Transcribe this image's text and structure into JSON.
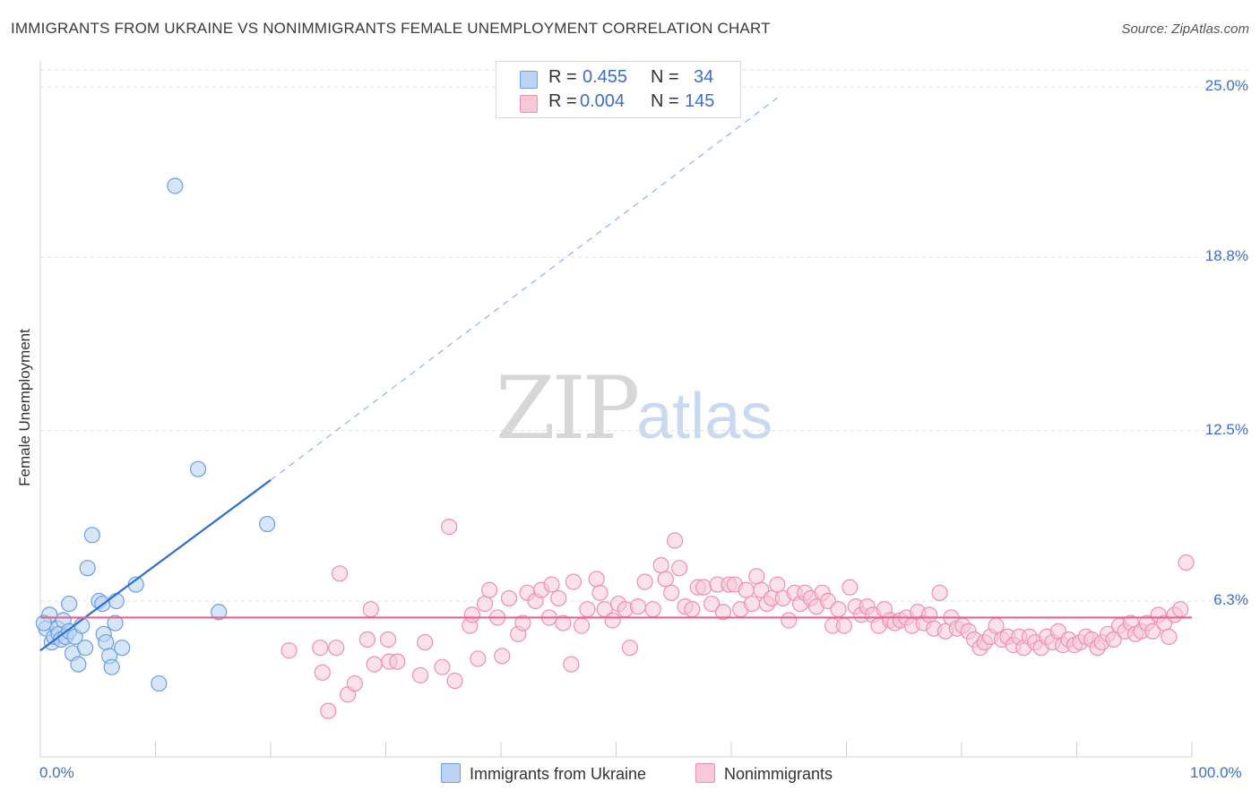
{
  "title": "IMMIGRANTS FROM UKRAINE VS NONIMMIGRANTS FEMALE UNEMPLOYMENT CORRELATION CHART",
  "source": "Source: ZipAtlas.com",
  "watermark": {
    "zip": "ZIP",
    "atlas": "atlas"
  },
  "legend": {
    "series1": {
      "r_label": "R =",
      "r_value": "0.455",
      "n_label": "N =",
      "n_value": "34"
    },
    "series2": {
      "r_label": "R =",
      "r_value": "0.004",
      "n_label": "N =",
      "n_value": "145"
    }
  },
  "chart_data": {
    "type": "scatter",
    "title": "IMMIGRANTS FROM UKRAINE VS NONIMMIGRANTS FEMALE UNEMPLOYMENT CORRELATION CHART",
    "xlabel": "",
    "ylabel": "Female Unemployment",
    "xlim": [
      0,
      100
    ],
    "ylim": [
      0,
      26.2
    ],
    "x_tick_labels": [
      "0.0%",
      "100.0%"
    ],
    "y_ticks": [
      6.3,
      12.5,
      18.8,
      25.0
    ],
    "y_tick_labels": [
      "6.3%",
      "12.5%",
      "18.8%",
      "25.0%"
    ],
    "colors": {
      "ukraine": "#6a9fe0",
      "ukraine_fill": "#bcd3f3",
      "ukraine_line": "#2a6fd1",
      "nonimm": "#ee8fb0",
      "nonimm_fill": "#f8c8d8",
      "nonimm_line": "#e8638e"
    },
    "series": [
      {
        "name": "Immigrants from Ukraine",
        "trend": {
          "x0": 0,
          "y0": 4.5,
          "x1": 20,
          "y1": 10.7,
          "dash_to_x": 64,
          "dash_to_y": 24.6
        },
        "points": [
          [
            0.5,
            5.3
          ],
          [
            0.8,
            5.8
          ],
          [
            1.0,
            4.8
          ],
          [
            1.2,
            5.0
          ],
          [
            1.5,
            5.3
          ],
          [
            1.6,
            5.1
          ],
          [
            1.8,
            4.9
          ],
          [
            2.0,
            5.6
          ],
          [
            2.2,
            5.0
          ],
          [
            2.5,
            5.2
          ],
          [
            2.5,
            6.2
          ],
          [
            2.8,
            4.4
          ],
          [
            3.0,
            5.0
          ],
          [
            3.3,
            4.0
          ],
          [
            3.6,
            5.4
          ],
          [
            3.9,
            4.6
          ],
          [
            4.1,
            7.5
          ],
          [
            4.5,
            8.7
          ],
          [
            5.1,
            6.3
          ],
          [
            5.4,
            6.2
          ],
          [
            5.5,
            5.1
          ],
          [
            5.7,
            4.8
          ],
          [
            6.0,
            4.3
          ],
          [
            6.2,
            3.9
          ],
          [
            6.5,
            5.5
          ],
          [
            6.6,
            6.3
          ],
          [
            7.1,
            4.6
          ],
          [
            8.3,
            6.9
          ],
          [
            10.3,
            3.3
          ],
          [
            11.7,
            21.4
          ],
          [
            13.7,
            11.1
          ],
          [
            15.5,
            5.9
          ],
          [
            19.7,
            9.1
          ],
          [
            0.3,
            5.5
          ]
        ]
      },
      {
        "name": "Nonimmigrants",
        "trend": {
          "x0": 0,
          "y0": 5.7,
          "x1": 100,
          "y1": 5.7
        },
        "points": [
          [
            21.6,
            4.5
          ],
          [
            24.3,
            4.6
          ],
          [
            24.5,
            3.7
          ],
          [
            25.0,
            2.3
          ],
          [
            25.7,
            4.6
          ],
          [
            26.0,
            7.3
          ],
          [
            26.7,
            2.9
          ],
          [
            27.3,
            3.3
          ],
          [
            28.7,
            6.0
          ],
          [
            29.0,
            4.0
          ],
          [
            28.4,
            4.9
          ],
          [
            30.2,
            4.9
          ],
          [
            30.3,
            4.1
          ],
          [
            31.0,
            4.1
          ],
          [
            33.0,
            3.6
          ],
          [
            33.4,
            4.8
          ],
          [
            34.9,
            3.9
          ],
          [
            35.5,
            9.0
          ],
          [
            36.0,
            3.4
          ],
          [
            37.3,
            5.4
          ],
          [
            37.5,
            5.8
          ],
          [
            38.0,
            4.2
          ],
          [
            38.6,
            6.2
          ],
          [
            39.0,
            6.7
          ],
          [
            39.7,
            5.7
          ],
          [
            40.1,
            4.3
          ],
          [
            40.7,
            6.4
          ],
          [
            41.5,
            5.1
          ],
          [
            41.9,
            5.5
          ],
          [
            42.3,
            6.6
          ],
          [
            43.0,
            6.3
          ],
          [
            43.5,
            6.7
          ],
          [
            44.2,
            5.7
          ],
          [
            44.4,
            6.9
          ],
          [
            45.0,
            6.4
          ],
          [
            45.4,
            5.5
          ],
          [
            46.1,
            4.0
          ],
          [
            46.3,
            7.0
          ],
          [
            47.0,
            5.4
          ],
          [
            47.5,
            6.0
          ],
          [
            48.3,
            7.1
          ],
          [
            48.6,
            6.6
          ],
          [
            49.0,
            6.0
          ],
          [
            49.7,
            5.6
          ],
          [
            50.2,
            6.2
          ],
          [
            50.8,
            6.0
          ],
          [
            51.2,
            4.6
          ],
          [
            51.9,
            6.1
          ],
          [
            52.5,
            7.0
          ],
          [
            53.2,
            6.0
          ],
          [
            53.9,
            7.6
          ],
          [
            54.3,
            7.1
          ],
          [
            54.8,
            6.6
          ],
          [
            55.1,
            8.5
          ],
          [
            55.5,
            7.5
          ],
          [
            56.0,
            6.1
          ],
          [
            56.6,
            6.0
          ],
          [
            57.1,
            6.8
          ],
          [
            57.6,
            6.8
          ],
          [
            58.3,
            6.2
          ],
          [
            58.8,
            6.9
          ],
          [
            59.3,
            5.9
          ],
          [
            59.8,
            6.9
          ],
          [
            60.3,
            6.9
          ],
          [
            60.8,
            6.0
          ],
          [
            61.3,
            6.7
          ],
          [
            61.8,
            6.2
          ],
          [
            62.2,
            7.2
          ],
          [
            62.6,
            6.7
          ],
          [
            63.1,
            6.2
          ],
          [
            63.5,
            6.4
          ],
          [
            64.0,
            6.9
          ],
          [
            64.5,
            6.4
          ],
          [
            65.0,
            5.6
          ],
          [
            65.5,
            6.6
          ],
          [
            66.0,
            6.2
          ],
          [
            66.4,
            6.6
          ],
          [
            66.9,
            6.4
          ],
          [
            67.4,
            6.1
          ],
          [
            67.9,
            6.6
          ],
          [
            68.4,
            6.3
          ],
          [
            68.8,
            5.4
          ],
          [
            69.3,
            6.0
          ],
          [
            69.8,
            5.4
          ],
          [
            70.3,
            6.8
          ],
          [
            70.8,
            6.1
          ],
          [
            71.3,
            5.8
          ],
          [
            71.8,
            6.1
          ],
          [
            72.3,
            5.8
          ],
          [
            72.8,
            5.4
          ],
          [
            73.3,
            6.0
          ],
          [
            73.8,
            5.6
          ],
          [
            74.2,
            5.5
          ],
          [
            74.7,
            5.6
          ],
          [
            75.2,
            5.7
          ],
          [
            75.7,
            5.4
          ],
          [
            76.2,
            5.9
          ],
          [
            76.7,
            5.5
          ],
          [
            77.2,
            5.8
          ],
          [
            77.6,
            5.3
          ],
          [
            78.1,
            6.6
          ],
          [
            78.6,
            5.2
          ],
          [
            79.1,
            5.7
          ],
          [
            79.6,
            5.3
          ],
          [
            80.1,
            5.4
          ],
          [
            80.6,
            5.2
          ],
          [
            81.1,
            4.9
          ],
          [
            81.6,
            4.6
          ],
          [
            82.0,
            4.8
          ],
          [
            82.5,
            5.0
          ],
          [
            83.0,
            5.4
          ],
          [
            83.5,
            4.9
          ],
          [
            84.0,
            5.0
          ],
          [
            84.5,
            4.7
          ],
          [
            85.0,
            5.0
          ],
          [
            85.4,
            4.6
          ],
          [
            85.9,
            5.0
          ],
          [
            86.4,
            4.8
          ],
          [
            86.9,
            4.6
          ],
          [
            87.4,
            5.0
          ],
          [
            87.9,
            4.8
          ],
          [
            88.4,
            5.2
          ],
          [
            88.8,
            4.7
          ],
          [
            89.3,
            4.9
          ],
          [
            89.8,
            4.7
          ],
          [
            90.3,
            4.8
          ],
          [
            90.8,
            5.0
          ],
          [
            91.3,
            4.9
          ],
          [
            91.8,
            4.6
          ],
          [
            92.2,
            4.8
          ],
          [
            92.7,
            5.1
          ],
          [
            93.2,
            4.9
          ],
          [
            93.7,
            5.4
          ],
          [
            94.2,
            5.2
          ],
          [
            94.7,
            5.5
          ],
          [
            95.1,
            5.1
          ],
          [
            95.6,
            5.2
          ],
          [
            96.1,
            5.5
          ],
          [
            96.6,
            5.2
          ],
          [
            97.1,
            5.8
          ],
          [
            97.6,
            5.5
          ],
          [
            98.0,
            5.0
          ],
          [
            98.5,
            5.8
          ],
          [
            99.0,
            6.0
          ],
          [
            99.5,
            7.7
          ]
        ]
      }
    ]
  },
  "ylabel": "Female Unemployment",
  "x_tick_left": "0.0%",
  "x_tick_right": "100.0%",
  "bottom_legend": {
    "series1": "Immigrants from Ukraine",
    "series2": "Nonimmigrants"
  }
}
